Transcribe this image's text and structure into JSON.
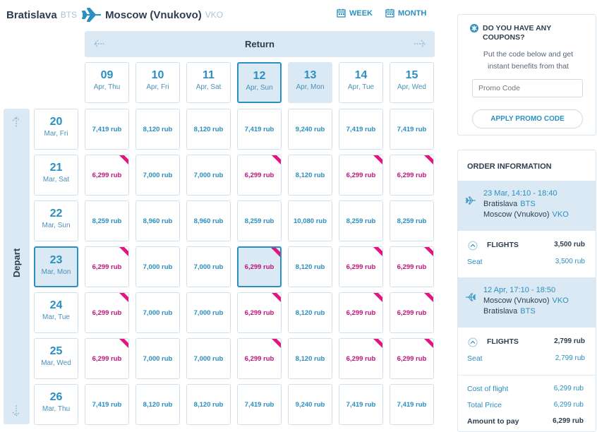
{
  "header": {
    "origin_city": "Bratislava",
    "origin_code": "BTS",
    "dest_city": "Moscow (Vnukovo)",
    "dest_code": "VKO",
    "week_label": "WEEK",
    "month_label": "MONTH"
  },
  "return_label": "Return",
  "depart_label": "Depart",
  "return_dates": [
    {
      "day": "09",
      "wd": "Apr, Thu",
      "state": ""
    },
    {
      "day": "10",
      "wd": "Apr, Fri",
      "state": ""
    },
    {
      "day": "11",
      "wd": "Apr, Sat",
      "state": ""
    },
    {
      "day": "12",
      "wd": "Apr, Sun",
      "state": "selected"
    },
    {
      "day": "13",
      "wd": "Apr, Mon",
      "state": "highlight"
    },
    {
      "day": "14",
      "wd": "Apr, Tue",
      "state": ""
    },
    {
      "day": "15",
      "wd": "Apr, Wed",
      "state": ""
    }
  ],
  "depart_dates": [
    {
      "day": "20",
      "wd": "Mar, Fri",
      "state": ""
    },
    {
      "day": "21",
      "wd": "Mar, Sat",
      "state": ""
    },
    {
      "day": "22",
      "wd": "Mar, Sun",
      "state": ""
    },
    {
      "day": "23",
      "wd": "Mar, Mon",
      "state": "selected"
    },
    {
      "day": "24",
      "wd": "Mar, Tue",
      "state": ""
    },
    {
      "day": "25",
      "wd": "Mar, Wed",
      "state": ""
    },
    {
      "day": "26",
      "wd": "Mar, Thu",
      "state": ""
    }
  ],
  "price_grid": [
    [
      "7,419 rub",
      "8,120 rub",
      "8,120 rub",
      "7,419 rub",
      "9,240 rub",
      "7,419 rub",
      "7,419 rub"
    ],
    [
      "6,299 rub",
      "7,000 rub",
      "7,000 rub",
      "6,299 rub",
      "8,120 rub",
      "6,299 rub",
      "6,299 rub"
    ],
    [
      "8,259 rub",
      "8,960 rub",
      "8,960 rub",
      "8,259 rub",
      "10,080 rub",
      "8,259 rub",
      "8,259 rub"
    ],
    [
      "6,299 rub",
      "7,000 rub",
      "7,000 rub",
      "6,299 rub",
      "8,120 rub",
      "6,299 rub",
      "6,299 rub"
    ],
    [
      "6,299 rub",
      "7,000 rub",
      "7,000 rub",
      "6,299 rub",
      "8,120 rub",
      "6,299 rub",
      "6,299 rub"
    ],
    [
      "6,299 rub",
      "7,000 rub",
      "7,000 rub",
      "6,299 rub",
      "8,120 rub",
      "6,299 rub",
      "6,299 rub"
    ],
    [
      "7,419 rub",
      "8,120 rub",
      "8,120 rub",
      "7,419 rub",
      "9,240 rub",
      "7,419 rub",
      "7,419 rub"
    ]
  ],
  "cheapest_price": "6,299 rub",
  "colors": {
    "accent": "#2a8fc1",
    "cheap": "#c0147a",
    "highlight_bg": "#dbe9f4"
  },
  "coupon": {
    "title_line1": "DO YOU HAVE ANY",
    "title_line2": "COUPONS?",
    "text_line1": "Put the code below and get",
    "text_line2": "instant benefits from that",
    "input_placeholder": "Promo Code",
    "button_label": "APPLY PROMO CODE"
  },
  "order": {
    "title": "ORDER INFORMATION",
    "outbound": {
      "time": "23 Mar, 14:10 - 18:40",
      "from_city": "Bratislava",
      "from_code": "BTS",
      "to_city": "Moscow (Vnukovo)",
      "to_code": "VKO",
      "flights_label": "FLIGHTS",
      "flights_price": "3,500 rub",
      "seat_label": "Seat",
      "seat_price": "3,500 rub"
    },
    "inbound": {
      "time": "12 Apr, 17:10 - 18:50",
      "from_city": "Moscow (Vnukovo)",
      "from_code": "VKO",
      "to_city": "Bratislava",
      "to_code": "BTS",
      "flights_label": "FLIGHTS",
      "flights_price": "2,799 rub",
      "seat_label": "Seat",
      "seat_price": "2,799 rub"
    },
    "cost_label": "Cost of flight",
    "cost_value": "6,299 rub",
    "total_label": "Total Price",
    "total_value": "6,299 rub",
    "pay_label": "Amount to pay",
    "pay_value": "6,299 rub"
  }
}
